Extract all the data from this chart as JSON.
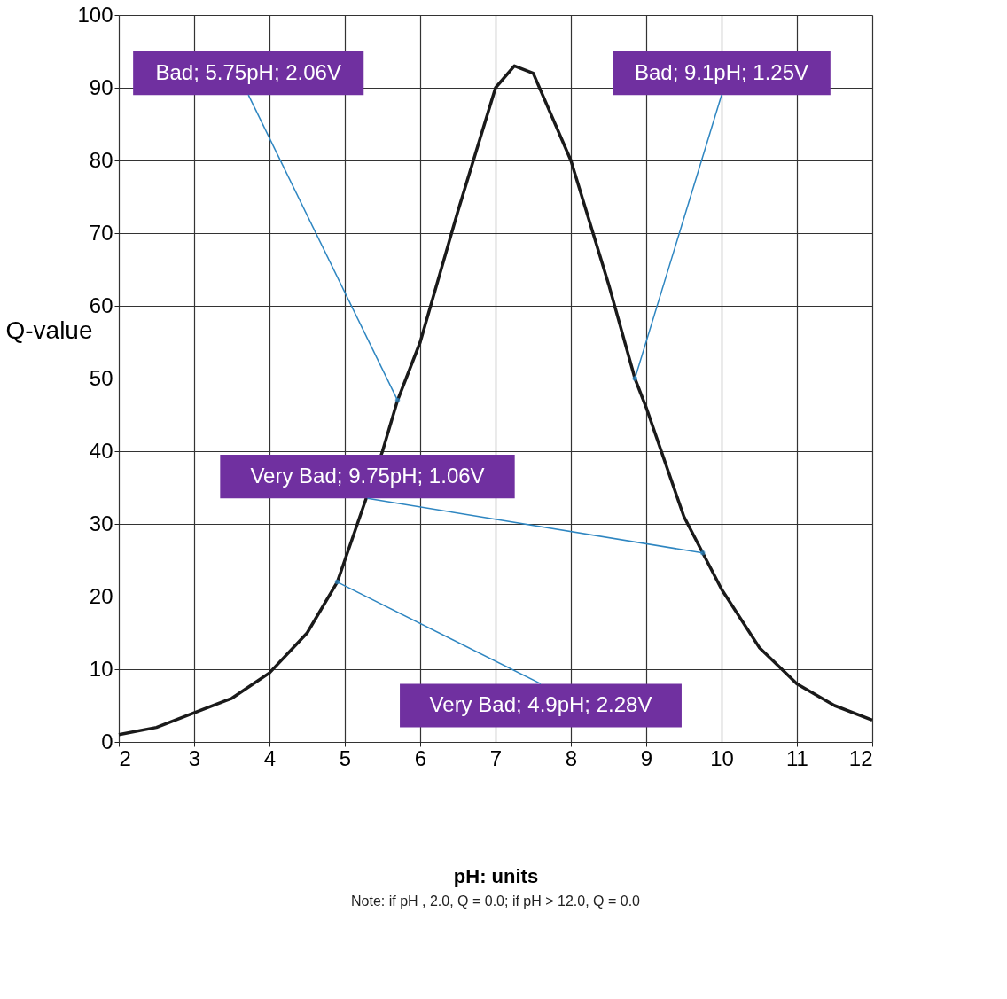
{
  "chart_data": {
    "type": "line",
    "xlabel": "pH: units",
    "ylabel": "Q-value",
    "x": [
      2,
      2.5,
      3,
      3.5,
      4,
      4.5,
      4.9,
      5,
      5.5,
      5.7,
      6,
      6.5,
      7,
      7.25,
      7.5,
      8,
      8.5,
      8.85,
      9,
      9.5,
      9.75,
      10,
      10.5,
      11,
      11.5,
      12
    ],
    "series": [
      {
        "color": "#1a1a1a",
        "values": [
          1,
          2,
          4,
          6,
          9.5,
          15,
          22,
          25,
          40,
          47,
          55,
          73,
          90,
          93,
          92,
          80,
          63,
          50,
          46,
          31,
          26,
          21,
          13,
          8,
          5,
          3
        ]
      }
    ],
    "xlim": [
      2,
      12
    ],
    "xticks": [
      2,
      3,
      4,
      5,
      6,
      7,
      8,
      9,
      10,
      11,
      12
    ],
    "ylim": [
      0,
      100
    ],
    "yticks": [
      0,
      10,
      20,
      30,
      40,
      50,
      60,
      70,
      80,
      90,
      100
    ],
    "grid": true,
    "marker": "none",
    "line_style": "solid",
    "annotations": [
      {
        "text": "Bad; 5.75pH; 2.06V",
        "x": 5.7,
        "y": 47
      },
      {
        "text": "Bad; 9.1pH; 1.25V",
        "x": 8.85,
        "y": 50
      },
      {
        "text": "Very Bad; 9.75pH; 1.06V",
        "x": 9.75,
        "y": 26
      },
      {
        "text": "Very Bad; 4.9pH; 2.28V",
        "x": 4.9,
        "y": 22
      },
      "Note: if pH , 2.0, Q = 0.0; if pH > 12.0, Q = 0.0"
    ]
  }
}
